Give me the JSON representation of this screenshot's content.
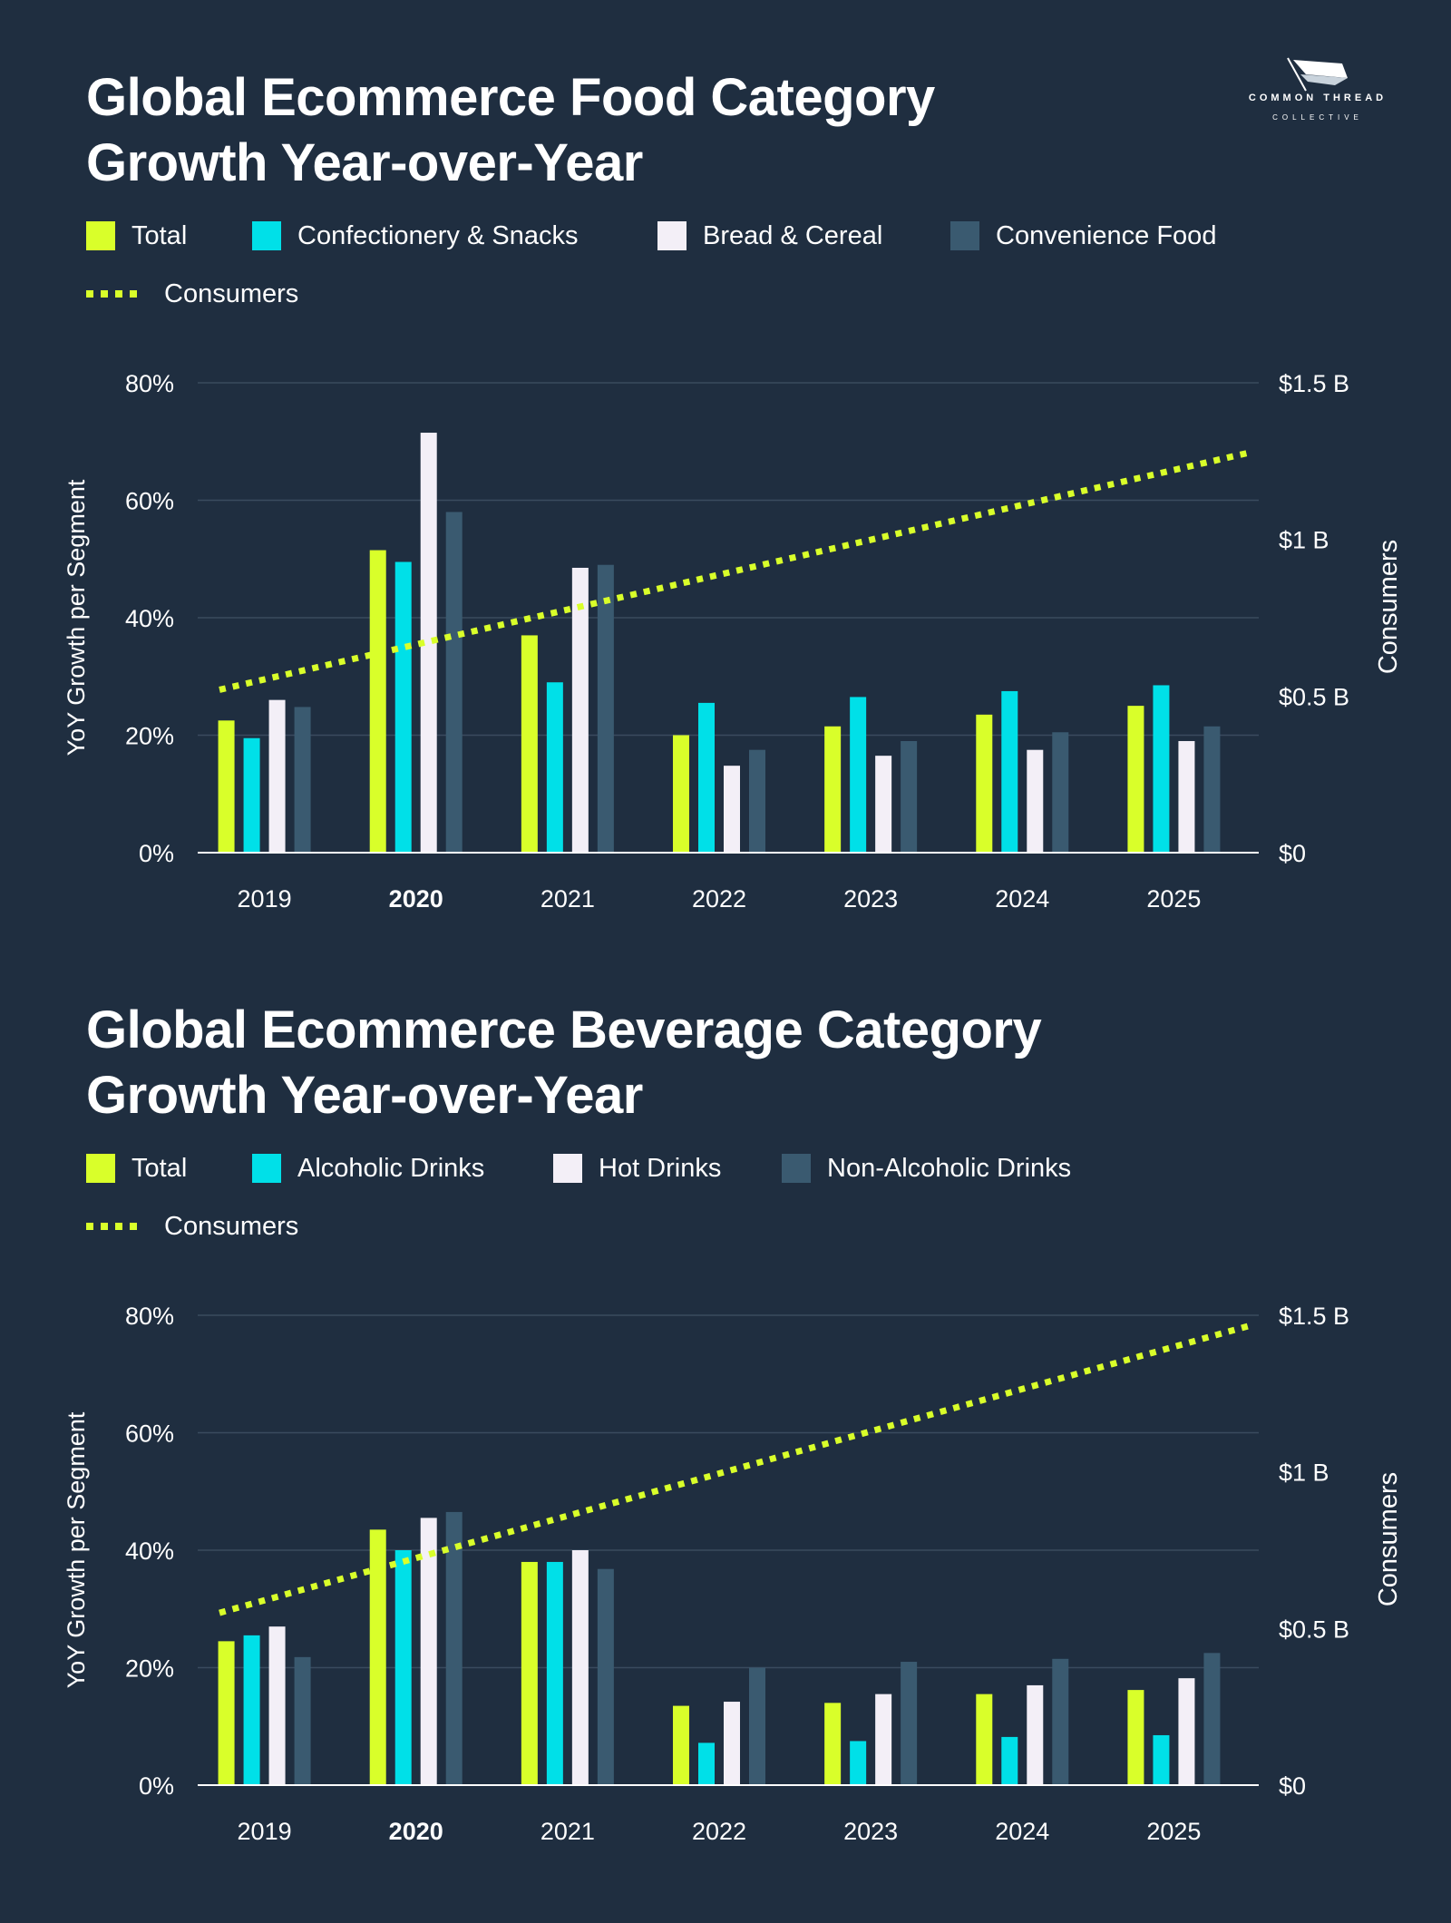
{
  "logo": {
    "line1": "COMMON THREAD",
    "line2": "COLLECTIVE"
  },
  "colors": {
    "background": "#1f2e40",
    "lime": "#d9ff2a",
    "cyan": "#00e0e8",
    "white": "#f3eff7",
    "slate": "#3a5a70",
    "grid": "#3a4b5e"
  },
  "chart_data": [
    {
      "type": "bar",
      "title_line1": "Global Ecommerce Food Category",
      "title_line2": "Growth Year-over-Year",
      "legend": [
        "Total",
        "Confectionery & Snacks",
        "Bread & Cereal",
        "Convenience Food"
      ],
      "line_legend": "Consumers",
      "ylabel": "YoY Growth per Segment",
      "y2label": "Consumers",
      "categories": [
        "2019",
        "2020",
        "2021",
        "2022",
        "2023",
        "2024",
        "2025"
      ],
      "highlight_category": "2020",
      "yticks": [
        "0%",
        "20%",
        "40%",
        "60%",
        "80%"
      ],
      "y2ticks": [
        "$0",
        "$0.5 B",
        "$1 B",
        "$1.5 B"
      ],
      "ylim": [
        0,
        80
      ],
      "y2lim": [
        0,
        1.5
      ],
      "grid": true,
      "series": [
        {
          "name": "Total",
          "values": [
            22.5,
            51.5,
            37,
            20,
            21.5,
            23.5,
            25
          ]
        },
        {
          "name": "Confectionery & Snacks",
          "values": [
            19.5,
            49.5,
            29,
            25.5,
            26.5,
            27.5,
            28.5
          ]
        },
        {
          "name": "Bread & Cereal",
          "values": [
            26,
            71.5,
            48.5,
            14.8,
            16.5,
            17.5,
            19
          ]
        },
        {
          "name": "Convenience Food",
          "values": [
            24.8,
            58,
            49,
            17.5,
            19,
            20.5,
            21.5
          ]
        }
      ],
      "line": {
        "name": "Consumers",
        "start": 0.52,
        "end": 1.28
      }
    },
    {
      "type": "bar",
      "title_line1": "Global Ecommerce Beverage Category",
      "title_line2": "Growth Year-over-Year",
      "legend": [
        "Total",
        "Alcoholic Drinks",
        "Hot Drinks",
        "Non-Alcoholic Drinks"
      ],
      "line_legend": "Consumers",
      "ylabel": "YoY Growth per Segment",
      "y2label": "Consumers",
      "categories": [
        "2019",
        "2020",
        "2021",
        "2022",
        "2023",
        "2024",
        "2025"
      ],
      "highlight_category": "2020",
      "yticks": [
        "0%",
        "20%",
        "40%",
        "60%",
        "80%"
      ],
      "y2ticks": [
        "$0",
        "$0.5 B",
        "$1 B",
        "$1.5 B"
      ],
      "ylim": [
        0,
        80
      ],
      "y2lim": [
        0,
        1.5
      ],
      "grid": true,
      "series": [
        {
          "name": "Total",
          "values": [
            24.5,
            43.5,
            38,
            13.5,
            14,
            15.5,
            16.2
          ]
        },
        {
          "name": "Alcoholic Drinks",
          "values": [
            25.5,
            40,
            38,
            7.2,
            7.5,
            8.2,
            8.5
          ]
        },
        {
          "name": "Hot Drinks",
          "values": [
            27,
            45.5,
            40,
            14.2,
            15.5,
            17,
            18.2
          ]
        },
        {
          "name": "Non-Alcoholic Drinks",
          "values": [
            21.8,
            46.5,
            36.8,
            20,
            21,
            21.5,
            22.5
          ]
        }
      ],
      "line": {
        "name": "Consumers",
        "start": 0.55,
        "end": 1.47
      }
    }
  ]
}
